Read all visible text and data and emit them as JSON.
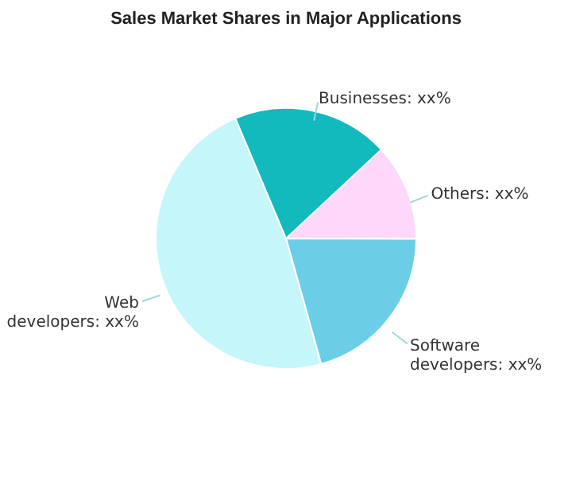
{
  "chart_data": {
    "type": "pie",
    "title": "Sales Market Shares in Major Applications",
    "categories": [
      "Others",
      "Software developers",
      "Web developers",
      "Businesses"
    ],
    "values": [
      12,
      20.6,
      48,
      19.4
    ],
    "colors": [
      "#fdd8fa",
      "#6ccde6",
      "#c4f6fa",
      "#12b9bd"
    ],
    "value_labels": [
      "xx%",
      "xx%",
      "xx%",
      "xx%"
    ]
  }
}
